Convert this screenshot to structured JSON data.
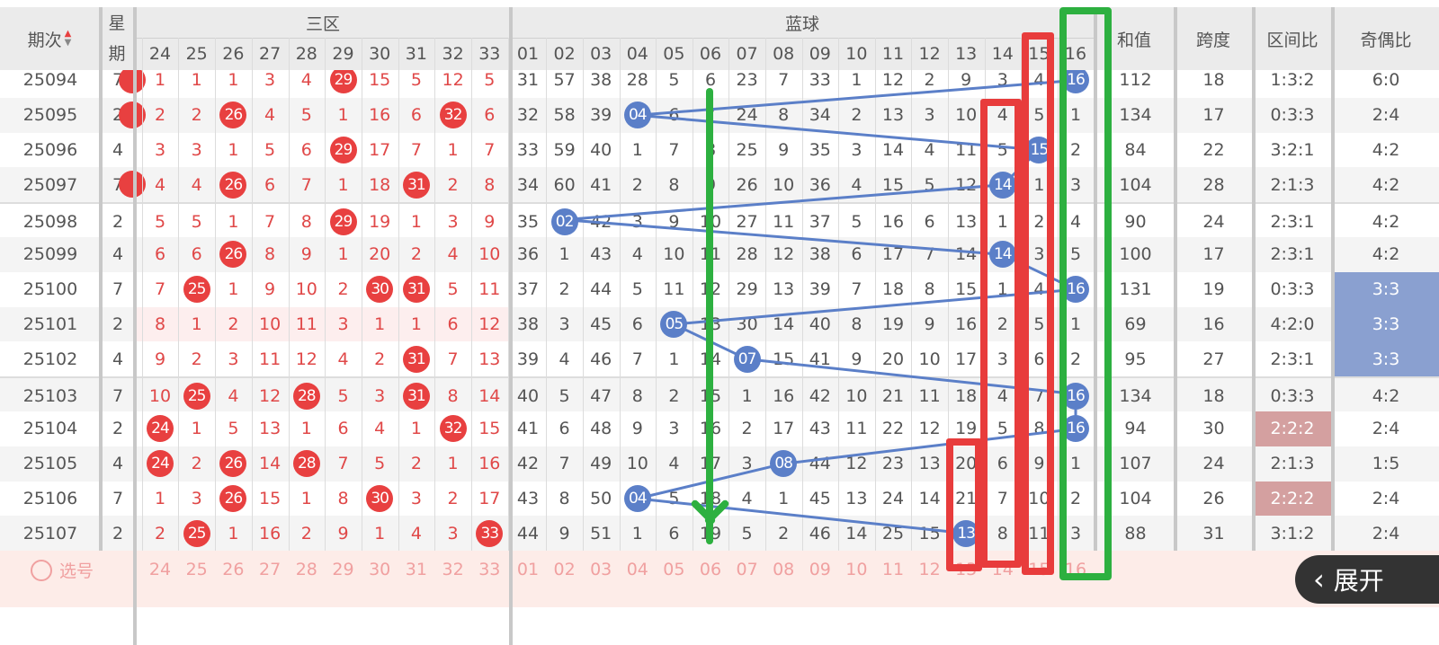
{
  "header": {
    "issue_label": "期次",
    "weekday_label": "星期",
    "red_zone_label": "三区",
    "blue_label": "蓝球",
    "sum_label": "和值",
    "span_label": "跨度",
    "zone_ratio_label": "区间比",
    "odd_even_label": "奇偶比",
    "sort_icon": "sort-up-down-icon"
  },
  "red_columns": [
    "24",
    "25",
    "26",
    "27",
    "28",
    "29",
    "30",
    "31",
    "32",
    "33"
  ],
  "blue_columns": [
    "01",
    "02",
    "03",
    "04",
    "05",
    "06",
    "07",
    "08",
    "09",
    "10",
    "11",
    "12",
    "13",
    "14",
    "15",
    "16"
  ],
  "colors": {
    "red_ball": "#e84040",
    "blue_ball": "#5b7fc8",
    "odd_even_highlight": "#8aa0d0",
    "zone_highlight": "#d4a0a0",
    "annotation_green": "#2db040",
    "annotation_red": "#e83c3c"
  },
  "rows": [
    {
      "issue": "25094",
      "weekday": "7",
      "red": [
        "1",
        "1",
        "1",
        "3",
        "4",
        "29",
        "15",
        "5",
        "12",
        "5"
      ],
      "red_hits": [
        "29"
      ],
      "blue": [
        "31",
        "57",
        "38",
        "28",
        "5",
        "6",
        "23",
        "7",
        "33",
        "1",
        "12",
        "2",
        "9",
        "3",
        "4",
        "16"
      ],
      "blue_hit": "16",
      "sum": "112",
      "span": "18",
      "zone": "1:3:2",
      "odd_even": "6:0"
    },
    {
      "issue": "25095",
      "weekday": "2",
      "red": [
        "2",
        "2",
        "26",
        "4",
        "5",
        "1",
        "16",
        "6",
        "32",
        "6"
      ],
      "red_hits": [
        "26",
        "32"
      ],
      "blue": [
        "32",
        "58",
        "39",
        "04",
        "6",
        "7",
        "24",
        "8",
        "34",
        "2",
        "13",
        "3",
        "10",
        "4",
        "5",
        "1"
      ],
      "blue_hit": "04",
      "sum": "134",
      "span": "17",
      "zone": "0:3:3",
      "odd_even": "2:4"
    },
    {
      "issue": "25096",
      "weekday": "4",
      "red": [
        "3",
        "3",
        "1",
        "5",
        "6",
        "29",
        "17",
        "7",
        "1",
        "7"
      ],
      "red_hits": [
        "29"
      ],
      "blue": [
        "33",
        "59",
        "40",
        "1",
        "7",
        "8",
        "25",
        "9",
        "35",
        "3",
        "14",
        "4",
        "11",
        "5",
        "15",
        "2"
      ],
      "blue_hit": "15",
      "sum": "84",
      "span": "22",
      "zone": "3:2:1",
      "odd_even": "4:2"
    },
    {
      "issue": "25097",
      "weekday": "7",
      "red": [
        "4",
        "4",
        "26",
        "6",
        "7",
        "1",
        "18",
        "31",
        "2",
        "8"
      ],
      "red_hits": [
        "26",
        "31"
      ],
      "blue": [
        "34",
        "60",
        "41",
        "2",
        "8",
        "9",
        "26",
        "10",
        "36",
        "4",
        "15",
        "5",
        "12",
        "14",
        "1",
        "3"
      ],
      "blue_hit": "14",
      "sum": "104",
      "span": "28",
      "zone": "2:1:3",
      "odd_even": "4:2"
    },
    {
      "issue": "25098",
      "weekday": "2",
      "red": [
        "5",
        "5",
        "1",
        "7",
        "8",
        "29",
        "19",
        "1",
        "3",
        "9"
      ],
      "red_hits": [
        "29"
      ],
      "blue": [
        "35",
        "02",
        "42",
        "3",
        "9",
        "10",
        "27",
        "11",
        "37",
        "5",
        "16",
        "6",
        "13",
        "1",
        "2",
        "4"
      ],
      "blue_hit": "02",
      "sum": "90",
      "span": "24",
      "zone": "2:3:1",
      "odd_even": "4:2"
    },
    {
      "issue": "25099",
      "weekday": "4",
      "red": [
        "6",
        "6",
        "26",
        "8",
        "9",
        "1",
        "20",
        "2",
        "4",
        "10"
      ],
      "red_hits": [
        "26"
      ],
      "blue": [
        "36",
        "1",
        "43",
        "4",
        "10",
        "11",
        "28",
        "12",
        "38",
        "6",
        "17",
        "7",
        "14",
        "14",
        "3",
        "5"
      ],
      "blue_hit": "14",
      "sum": "100",
      "span": "17",
      "zone": "2:3:1",
      "odd_even": "4:2"
    },
    {
      "issue": "25100",
      "weekday": "7",
      "red": [
        "7",
        "25",
        "1",
        "9",
        "10",
        "2",
        "30",
        "31",
        "5",
        "11"
      ],
      "red_hits": [
        "25",
        "30",
        "31"
      ],
      "blue": [
        "37",
        "2",
        "44",
        "5",
        "11",
        "12",
        "29",
        "13",
        "39",
        "7",
        "18",
        "8",
        "15",
        "1",
        "4",
        "16"
      ],
      "blue_hit": "16",
      "sum": "131",
      "span": "19",
      "zone": "0:3:3",
      "odd_even": "3:3",
      "odd_even_hl": true
    },
    {
      "issue": "25101",
      "weekday": "2",
      "red": [
        "8",
        "1",
        "2",
        "10",
        "11",
        "3",
        "1",
        "1",
        "6",
        "12"
      ],
      "red_hits": [],
      "blue": [
        "38",
        "3",
        "45",
        "6",
        "05",
        "13",
        "30",
        "14",
        "40",
        "8",
        "19",
        "9",
        "16",
        "2",
        "5",
        "1"
      ],
      "blue_hit": "05",
      "sum": "69",
      "span": "16",
      "zone": "4:2:0",
      "odd_even": "3:3",
      "odd_even_hl": true,
      "pink": true
    },
    {
      "issue": "25102",
      "weekday": "4",
      "red": [
        "9",
        "2",
        "3",
        "11",
        "12",
        "4",
        "2",
        "31",
        "7",
        "13"
      ],
      "red_hits": [
        "31"
      ],
      "blue": [
        "39",
        "4",
        "46",
        "7",
        "1",
        "14",
        "07",
        "15",
        "41",
        "9",
        "20",
        "10",
        "17",
        "3",
        "6",
        "2"
      ],
      "blue_hit": "07",
      "sum": "95",
      "span": "27",
      "zone": "2:3:1",
      "odd_even": "3:3",
      "odd_even_hl": true
    },
    {
      "issue": "25103",
      "weekday": "7",
      "red": [
        "10",
        "25",
        "4",
        "12",
        "28",
        "5",
        "3",
        "31",
        "8",
        "14"
      ],
      "red_hits": [
        "25",
        "28",
        "31"
      ],
      "blue": [
        "40",
        "5",
        "47",
        "8",
        "2",
        "15",
        "1",
        "16",
        "42",
        "10",
        "21",
        "11",
        "18",
        "4",
        "7",
        "16"
      ],
      "blue_hit": "16",
      "sum": "134",
      "span": "18",
      "zone": "0:3:3",
      "odd_even": "4:2"
    },
    {
      "issue": "25104",
      "weekday": "2",
      "red": [
        "24",
        "1",
        "5",
        "13",
        "1",
        "6",
        "4",
        "1",
        "32",
        "15"
      ],
      "red_hits": [
        "24",
        "32"
      ],
      "blue": [
        "41",
        "6",
        "48",
        "9",
        "3",
        "16",
        "2",
        "17",
        "43",
        "11",
        "22",
        "12",
        "19",
        "5",
        "8",
        "16"
      ],
      "blue_hit": "16",
      "sum": "94",
      "span": "30",
      "zone": "2:2:2",
      "zone_hl": true,
      "odd_even": "2:4"
    },
    {
      "issue": "25105",
      "weekday": "4",
      "red": [
        "24",
        "2",
        "26",
        "14",
        "28",
        "7",
        "5",
        "2",
        "1",
        "16"
      ],
      "red_hits": [
        "24",
        "26",
        "28"
      ],
      "blue": [
        "42",
        "7",
        "49",
        "10",
        "4",
        "17",
        "3",
        "08",
        "44",
        "12",
        "23",
        "13",
        "20",
        "6",
        "9",
        "1"
      ],
      "blue_hit": "08",
      "sum": "107",
      "span": "24",
      "zone": "2:1:3",
      "odd_even": "1:5"
    },
    {
      "issue": "25106",
      "weekday": "7",
      "red": [
        "1",
        "3",
        "26",
        "15",
        "1",
        "8",
        "30",
        "3",
        "2",
        "17"
      ],
      "red_hits": [
        "26",
        "30"
      ],
      "blue": [
        "43",
        "8",
        "50",
        "04",
        "5",
        "18",
        "4",
        "1",
        "45",
        "13",
        "24",
        "14",
        "21",
        "7",
        "10",
        "2"
      ],
      "blue_hit": "04",
      "sum": "104",
      "span": "26",
      "zone": "2:2:2",
      "zone_hl": true,
      "odd_even": "2:4"
    },
    {
      "issue": "25107",
      "weekday": "2",
      "red": [
        "2",
        "25",
        "1",
        "16",
        "2",
        "9",
        "1",
        "4",
        "3",
        "33"
      ],
      "red_hits": [
        "25",
        "33"
      ],
      "blue": [
        "44",
        "9",
        "51",
        "1",
        "6",
        "19",
        "5",
        "2",
        "46",
        "14",
        "25",
        "15",
        "13",
        "8",
        "11",
        "3"
      ],
      "blue_hit": "13",
      "sum": "88",
      "span": "31",
      "zone": "3:1:2",
      "odd_even": "2:4"
    }
  ],
  "footer": {
    "select_label": "选号"
  },
  "expand_button": {
    "label": "展开",
    "icon": "chevron-left-icon"
  }
}
